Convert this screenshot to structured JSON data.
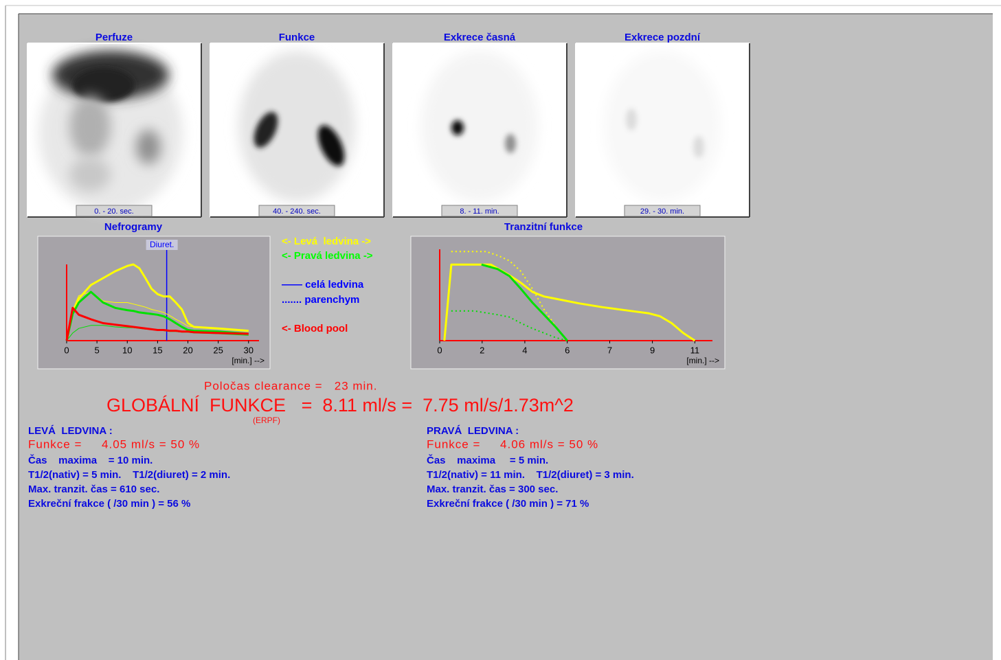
{
  "images": [
    {
      "title": "Perfuze",
      "label": "0. - 20. sec."
    },
    {
      "title": "Funkce",
      "label": "40. - 240. sec."
    },
    {
      "title": "Exkrece časná",
      "label": "8. - 11. min."
    },
    {
      "title": "Exkrece pozdní",
      "label": "29. - 30. min."
    }
  ],
  "legend": [
    {
      "text": "<- Levá  ledvina ->",
      "color": "#ffff00"
    },
    {
      "text": "<- Pravá ledvina ->",
      "color": "#00ff00"
    },
    {
      "text": "—— celá ledvina",
      "color": "#0000ff"
    },
    {
      "text": "....... parenchym",
      "color": "#0000ff"
    },
    {
      "text": "<- Blood pool",
      "color": "#ff0000"
    }
  ],
  "clearance": "Poločas clearance =   23 min.",
  "global_function": "GLOBÁLNÍ  FUNKCE   =  8.11 ml/s =  7.75 ml/s/1.73m^2",
  "erpf": "(ERPF)",
  "left_kidney": {
    "title": "LEVÁ  LEDVINA :",
    "function": "Funkce =     4.05 ml/s = 50 %",
    "lines": [
      "Čas    maxima    = 10 min.",
      "T1/2(nativ) = 5 min.    T1/2(diuret) = 2 min.",
      "Max. tranzit. čas = 610 sec.",
      "Exkreční frakce ( /30 min ) = 56 %"
    ]
  },
  "right_kidney": {
    "title": "PRAVÁ  LEDVINA :",
    "function": "Funkce =     4.06 ml/s = 50 %",
    "lines": [
      "Čas    maxima     = 5 min.",
      "T1/2(nativ) = 11 min.    T1/2(diuret) = 3 min.",
      "Max. tranzit. čas = 300 sec.",
      "Exkreční frakce ( /30 min ) = 71 %"
    ]
  },
  "chart_data": [
    {
      "type": "line",
      "title": "Nefrogramy",
      "x": [
        0,
        1,
        2,
        4,
        6,
        8,
        10,
        11,
        12,
        13,
        14,
        15,
        16,
        17,
        18,
        19,
        20,
        21,
        25,
        30
      ],
      "xlim": [
        0,
        31.5
      ],
      "xticks": [
        0,
        5,
        10,
        15,
        20,
        25,
        30
      ],
      "xlabel": "[min.] -->",
      "ylim": [
        0,
        100
      ],
      "axis_color": "#ff0000",
      "background": "#a6a3a8",
      "series": [
        {
          "color": "#ffff00",
          "width": 1,
          "values": [
            0,
            40,
            59,
            64,
            52,
            50,
            50,
            48,
            46,
            44,
            41,
            39,
            37,
            33,
            28,
            24,
            19,
            18,
            16,
            12
          ]
        },
        {
          "color": "#00e000",
          "width": 1,
          "values": [
            0,
            10,
            16,
            20,
            20,
            18,
            17,
            17,
            16,
            15,
            15,
            14,
            13,
            12,
            12,
            11,
            11,
            10,
            9,
            7
          ]
        },
        {
          "color": "#ffff00",
          "width": 3,
          "values": [
            0,
            37,
            55,
            73,
            82,
            91,
            98,
            100,
            95,
            82,
            68,
            61,
            58,
            58,
            50,
            41,
            23,
            18,
            16,
            13
          ]
        },
        {
          "color": "#00e000",
          "width": 3,
          "values": [
            0,
            35,
            50,
            64,
            50,
            43,
            40,
            39,
            37,
            36,
            35,
            34,
            32,
            28,
            23,
            18,
            14,
            13,
            12,
            9
          ]
        },
        {
          "color": "#ff0000",
          "width": 3,
          "values": [
            0,
            43,
            34,
            28,
            23,
            21,
            19,
            18,
            17,
            16,
            15,
            14,
            14,
            13,
            13,
            12,
            12,
            11,
            10,
            9
          ]
        }
      ],
      "marker": {
        "label": "Diuret.",
        "x": 16.5,
        "color": "#0000ff"
      }
    },
    {
      "type": "line",
      "title": "Tranzitní funkce",
      "xlim": [
        0,
        11.7
      ],
      "xticks": [
        0,
        {
          "value": 1.83,
          "label": "2"
        },
        {
          "value": 3.67,
          "label": "4"
        },
        {
          "value": 5.5,
          "label": "6"
        },
        {
          "value": 7.33,
          "label": "7"
        },
        {
          "value": 9.17,
          "label": "9"
        },
        11
      ],
      "xlabel": "[min.] -->",
      "ylim": [
        0,
        120
      ],
      "axis_color": "#ff0000",
      "background": "#a6a3a8",
      "series": [
        {
          "color": "#ffff00",
          "width": 3,
          "x": [
            0.2,
            0.5,
            2.2,
            3,
            3.5,
            4,
            4.5,
            5,
            6,
            7,
            8,
            9,
            9.5,
            10,
            10.5,
            11
          ],
          "values": [
            0,
            100,
            100,
            86,
            76,
            64,
            58,
            55,
            49,
            44,
            40,
            36,
            32,
            23,
            10,
            0
          ]
        },
        {
          "color": "#ffff00",
          "width": 2,
          "dotted": true,
          "x": [
            0.5,
            2,
            2.5,
            3,
            3.5,
            4,
            4.5,
            5,
            5.5
          ],
          "values": [
            117,
            117,
            112,
            105,
            91,
            68,
            41,
            19,
            0
          ]
        },
        {
          "color": "#00e000",
          "width": 2,
          "dotted": true,
          "x": [
            0.5,
            1.5,
            2.5,
            3,
            3.5,
            4,
            4.5,
            5,
            5.5
          ],
          "values": [
            39,
            39,
            34,
            31,
            23,
            16,
            10,
            4,
            0
          ]
        },
        {
          "color": "#00e000",
          "width": 3,
          "x": [
            1.8,
            2.5,
            3,
            3.5,
            4,
            4.5,
            5,
            5.5
          ],
          "values": [
            100,
            94,
            85,
            68,
            50,
            34,
            18,
            0
          ]
        }
      ]
    }
  ]
}
